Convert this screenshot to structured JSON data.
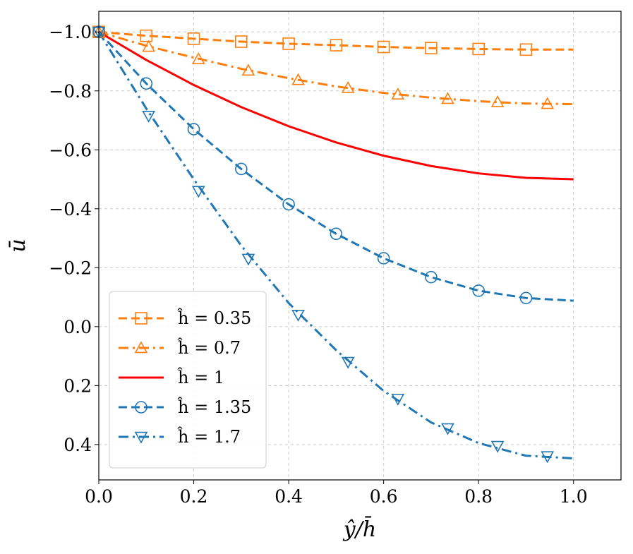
{
  "chart_data": {
    "type": "line",
    "title": "",
    "xlabel": "ŷ/h̄",
    "ylabel": "ū",
    "xlim": [
      0.0,
      1.1
    ],
    "ylim": [
      -1.07,
      0.52
    ],
    "y_inverted": true,
    "grid": true,
    "legend_position": "lower-left",
    "xticks": [
      "0.0",
      "0.2",
      "0.4",
      "0.6",
      "0.8",
      "1.0"
    ],
    "yticks": [
      "−1.0",
      "−0.8",
      "−0.6",
      "−0.4",
      "−0.2",
      "0.0",
      "0.2",
      "0.4"
    ],
    "xtick_values": [
      0.0,
      0.2,
      0.4,
      0.6,
      0.8,
      1.0
    ],
    "ytick_values": [
      -1.0,
      -0.8,
      -0.6,
      -0.4,
      -0.2,
      0.0,
      0.2,
      0.4
    ],
    "x": [
      0.0,
      0.1,
      0.2,
      0.3,
      0.4,
      0.5,
      0.6,
      0.7,
      0.8,
      0.9,
      1.0
    ],
    "series": [
      {
        "name": "ĥ = 0.35",
        "color": "#ff7f0e",
        "linestyle": "dashed",
        "marker": "square",
        "values": [
          -1.0,
          -0.987,
          -0.977,
          -0.967,
          -0.96,
          -0.955,
          -0.949,
          -0.945,
          -0.942,
          -0.94,
          -0.94
        ],
        "marker_x": [
          0.0,
          0.1,
          0.2,
          0.3,
          0.4,
          0.5,
          0.6,
          0.7,
          0.8,
          0.9
        ],
        "marker_y": [
          -1.0,
          -0.987,
          -0.977,
          -0.967,
          -0.96,
          -0.955,
          -0.949,
          -0.945,
          -0.942,
          -0.94
        ]
      },
      {
        "name": "ĥ = 0.7",
        "color": "#ff7f0e",
        "linestyle": "dashdot",
        "marker": "triangle-up",
        "values": [
          -1.0,
          -0.953,
          -0.913,
          -0.875,
          -0.843,
          -0.815,
          -0.793,
          -0.777,
          -0.765,
          -0.757,
          -0.755
        ],
        "marker_x": [
          0.0,
          0.105,
          0.21,
          0.315,
          0.42,
          0.525,
          0.63,
          0.735,
          0.84,
          0.945
        ],
        "marker_y": [
          -1.0,
          -0.95,
          -0.908,
          -0.869,
          -0.837,
          -0.81,
          -0.788,
          -0.773,
          -0.762,
          -0.756
        ]
      },
      {
        "name": "ĥ = 1",
        "color": "#ff0000",
        "linestyle": "solid",
        "marker": "none",
        "values": [
          -1.0,
          -0.905,
          -0.82,
          -0.745,
          -0.68,
          -0.625,
          -0.58,
          -0.545,
          -0.52,
          -0.505,
          -0.5
        ],
        "marker_x": [],
        "marker_y": []
      },
      {
        "name": "ĥ = 1.35",
        "color": "#1f77b4",
        "linestyle": "dashed",
        "marker": "circle",
        "values": [
          -1.0,
          -0.825,
          -0.67,
          -0.535,
          -0.415,
          -0.315,
          -0.232,
          -0.168,
          -0.122,
          -0.097,
          -0.088
        ],
        "marker_x": [
          0.0,
          0.1,
          0.2,
          0.3,
          0.4,
          0.5,
          0.6,
          0.7,
          0.8,
          0.9
        ],
        "marker_y": [
          -1.0,
          -0.825,
          -0.67,
          -0.535,
          -0.415,
          -0.315,
          -0.232,
          -0.168,
          -0.122,
          -0.097
        ]
      },
      {
        "name": "ĥ = 1.7",
        "color": "#1f77b4",
        "linestyle": "dashdot",
        "marker": "triangle-down",
        "values": [
          -1.0,
          -0.74,
          -0.5,
          -0.275,
          -0.08,
          0.08,
          0.218,
          0.325,
          0.395,
          0.438,
          0.447
        ],
        "marker_x": [
          0.0,
          0.105,
          0.21,
          0.315,
          0.42,
          0.525,
          0.63,
          0.735,
          0.84,
          0.945
        ],
        "marker_y": [
          -1.0,
          -0.715,
          -0.46,
          -0.23,
          -0.04,
          0.12,
          0.245,
          0.345,
          0.405,
          0.44
        ]
      }
    ]
  }
}
